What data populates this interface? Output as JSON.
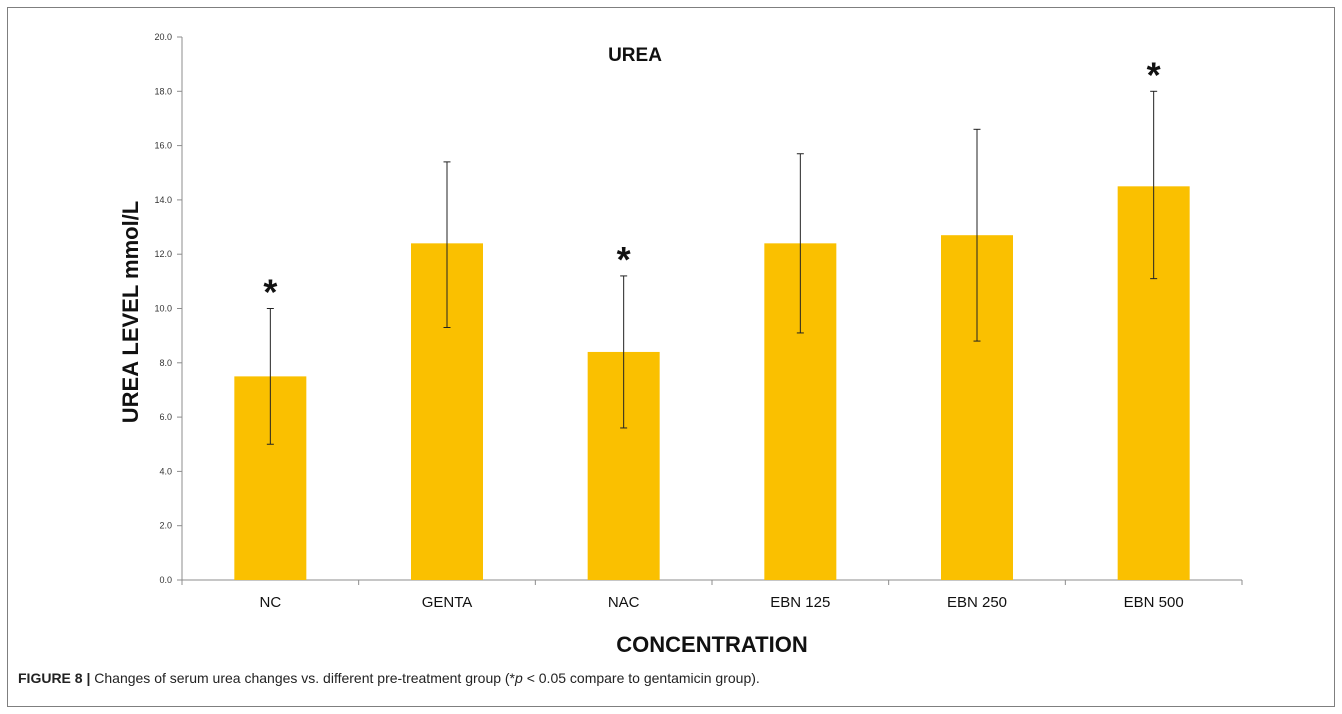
{
  "chart_data": {
    "type": "bar",
    "title": "UREA",
    "xlabel": "CONCENTRATION",
    "ylabel": "UREA LEVEL mmol/L",
    "categories": [
      "NC",
      "GENTA",
      "NAC",
      "EBN 125",
      "EBN 250",
      "EBN 500"
    ],
    "values": [
      7.5,
      12.4,
      8.4,
      12.4,
      12.7,
      14.5
    ],
    "error_upper": [
      10.0,
      15.4,
      11.2,
      15.7,
      16.6,
      18.0
    ],
    "error_lower": [
      5.0,
      9.3,
      5.6,
      9.1,
      8.8,
      11.1
    ],
    "significance": [
      "*",
      "",
      "*",
      "",
      "",
      "*"
    ],
    "ylim": [
      0,
      20
    ],
    "yticks": [
      "0.0",
      "2.0",
      "4.0",
      "6.0",
      "8.0",
      "10.0",
      "12.0",
      "14.0",
      "16.0",
      "18.0",
      "20.0"
    ],
    "bar_color": "#FAC000",
    "grid": false,
    "legend": "none"
  },
  "caption": {
    "label": "FIGURE 8 |",
    "text_before_p": " Changes of serum urea changes vs. different pre-treatment group (*",
    "p_symbol": "p",
    "text_after_p": " < 0.05 compare to gentamicin group)."
  }
}
